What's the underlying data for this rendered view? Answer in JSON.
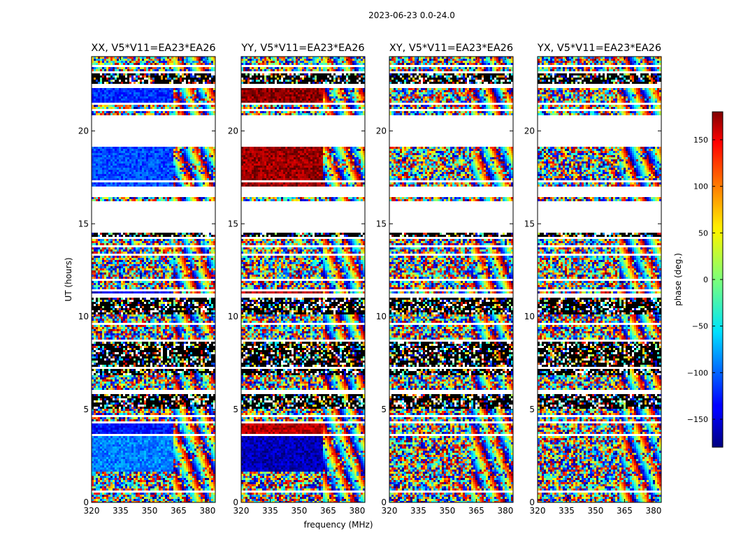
{
  "figure": {
    "suptitle": "2023-06-23 0.0-24.0",
    "xlabel": "frequency (MHz)",
    "ylabel": "UT (hours)"
  },
  "chart_data": {
    "type": "heatmap",
    "panels": [
      {
        "title": "XX, V5*V11=EA23*EA26",
        "pol": "XX"
      },
      {
        "title": "YY, V5*V11=EA23*EA26",
        "pol": "YY"
      },
      {
        "title": "XY, V5*V11=EA23*EA26",
        "pol": "XY"
      },
      {
        "title": "YX, V5*V11=EA23*EA26",
        "pol": "YX"
      }
    ],
    "xlim": [
      320,
      384
    ],
    "ylim": [
      0,
      24
    ],
    "xticks": [
      320,
      335,
      350,
      365,
      380
    ],
    "yticks": [
      0,
      5,
      10,
      15,
      20
    ],
    "colorbar": {
      "label": "phase (deg.)",
      "range": [
        -180,
        180
      ],
      "ticks": [
        150,
        100,
        50,
        0,
        -50,
        -100,
        -150
      ],
      "tick_labels": [
        "150",
        "100",
        "50",
        "0",
        "−50",
        "−100",
        "−150"
      ],
      "colormap": "jet"
    },
    "coherent_blocks": [
      {
        "pol": "XX",
        "t": [
          1.6,
          3.6
        ],
        "phase": -90
      },
      {
        "pol": "YY",
        "t": [
          1.6,
          3.6
        ],
        "phase": -160
      },
      {
        "pol": "XX",
        "t": [
          17.0,
          19.1
        ],
        "phase": -110
      },
      {
        "pol": "YY",
        "t": [
          17.0,
          19.1
        ],
        "phase": 170
      },
      {
        "pol": "XX",
        "t": [
          21.5,
          22.3
        ],
        "phase": -120
      },
      {
        "pol": "YY",
        "t": [
          21.5,
          22.3
        ],
        "phase": 175
      },
      {
        "pol": "XX",
        "t": [
          3.7,
          4.3
        ],
        "phase": -130
      },
      {
        "pol": "YY",
        "t": [
          3.7,
          4.3
        ],
        "phase": 160
      },
      {
        "pol": "XX",
        "t": [
          11.3,
          11.4
        ],
        "phase": -140
      },
      {
        "pol": "YY",
        "t": [
          11.3,
          11.4
        ],
        "phase": 160
      }
    ],
    "flagged_intervals": [
      [
        0.55,
        0.65
      ],
      [
        1.3,
        1.35
      ],
      [
        1.6,
        1.7
      ],
      [
        3.55,
        3.7
      ],
      [
        4.3,
        4.4
      ],
      [
        4.6,
        4.65
      ],
      [
        5.8,
        5.9
      ],
      [
        6.0,
        6.1
      ],
      [
        7.2,
        7.3
      ],
      [
        8.7,
        8.8
      ],
      [
        9.3,
        9.35
      ],
      [
        9.6,
        9.7
      ],
      [
        11.0,
        11.3
      ],
      [
        11.4,
        11.5
      ],
      [
        11.9,
        12.0
      ],
      [
        12.45,
        12.5
      ],
      [
        13.0,
        13.1
      ],
      [
        13.3,
        13.4
      ],
      [
        13.7,
        13.8
      ],
      [
        14.2,
        14.3
      ],
      [
        14.55,
        16.2
      ],
      [
        16.45,
        17.0
      ],
      [
        17.25,
        17.3
      ],
      [
        18.2,
        18.25
      ],
      [
        19.1,
        20.85
      ],
      [
        21.1,
        21.2
      ],
      [
        21.4,
        21.5
      ],
      [
        22.35,
        22.5
      ],
      [
        23.1,
        23.2
      ],
      [
        23.4,
        23.6
      ]
    ],
    "dark_bands": [
      [
        5.0,
        5.8
      ],
      [
        6.9,
        8.7
      ],
      [
        10.1,
        11.0
      ],
      [
        14.3,
        14.55
      ],
      [
        22.5,
        23.1
      ]
    ]
  }
}
